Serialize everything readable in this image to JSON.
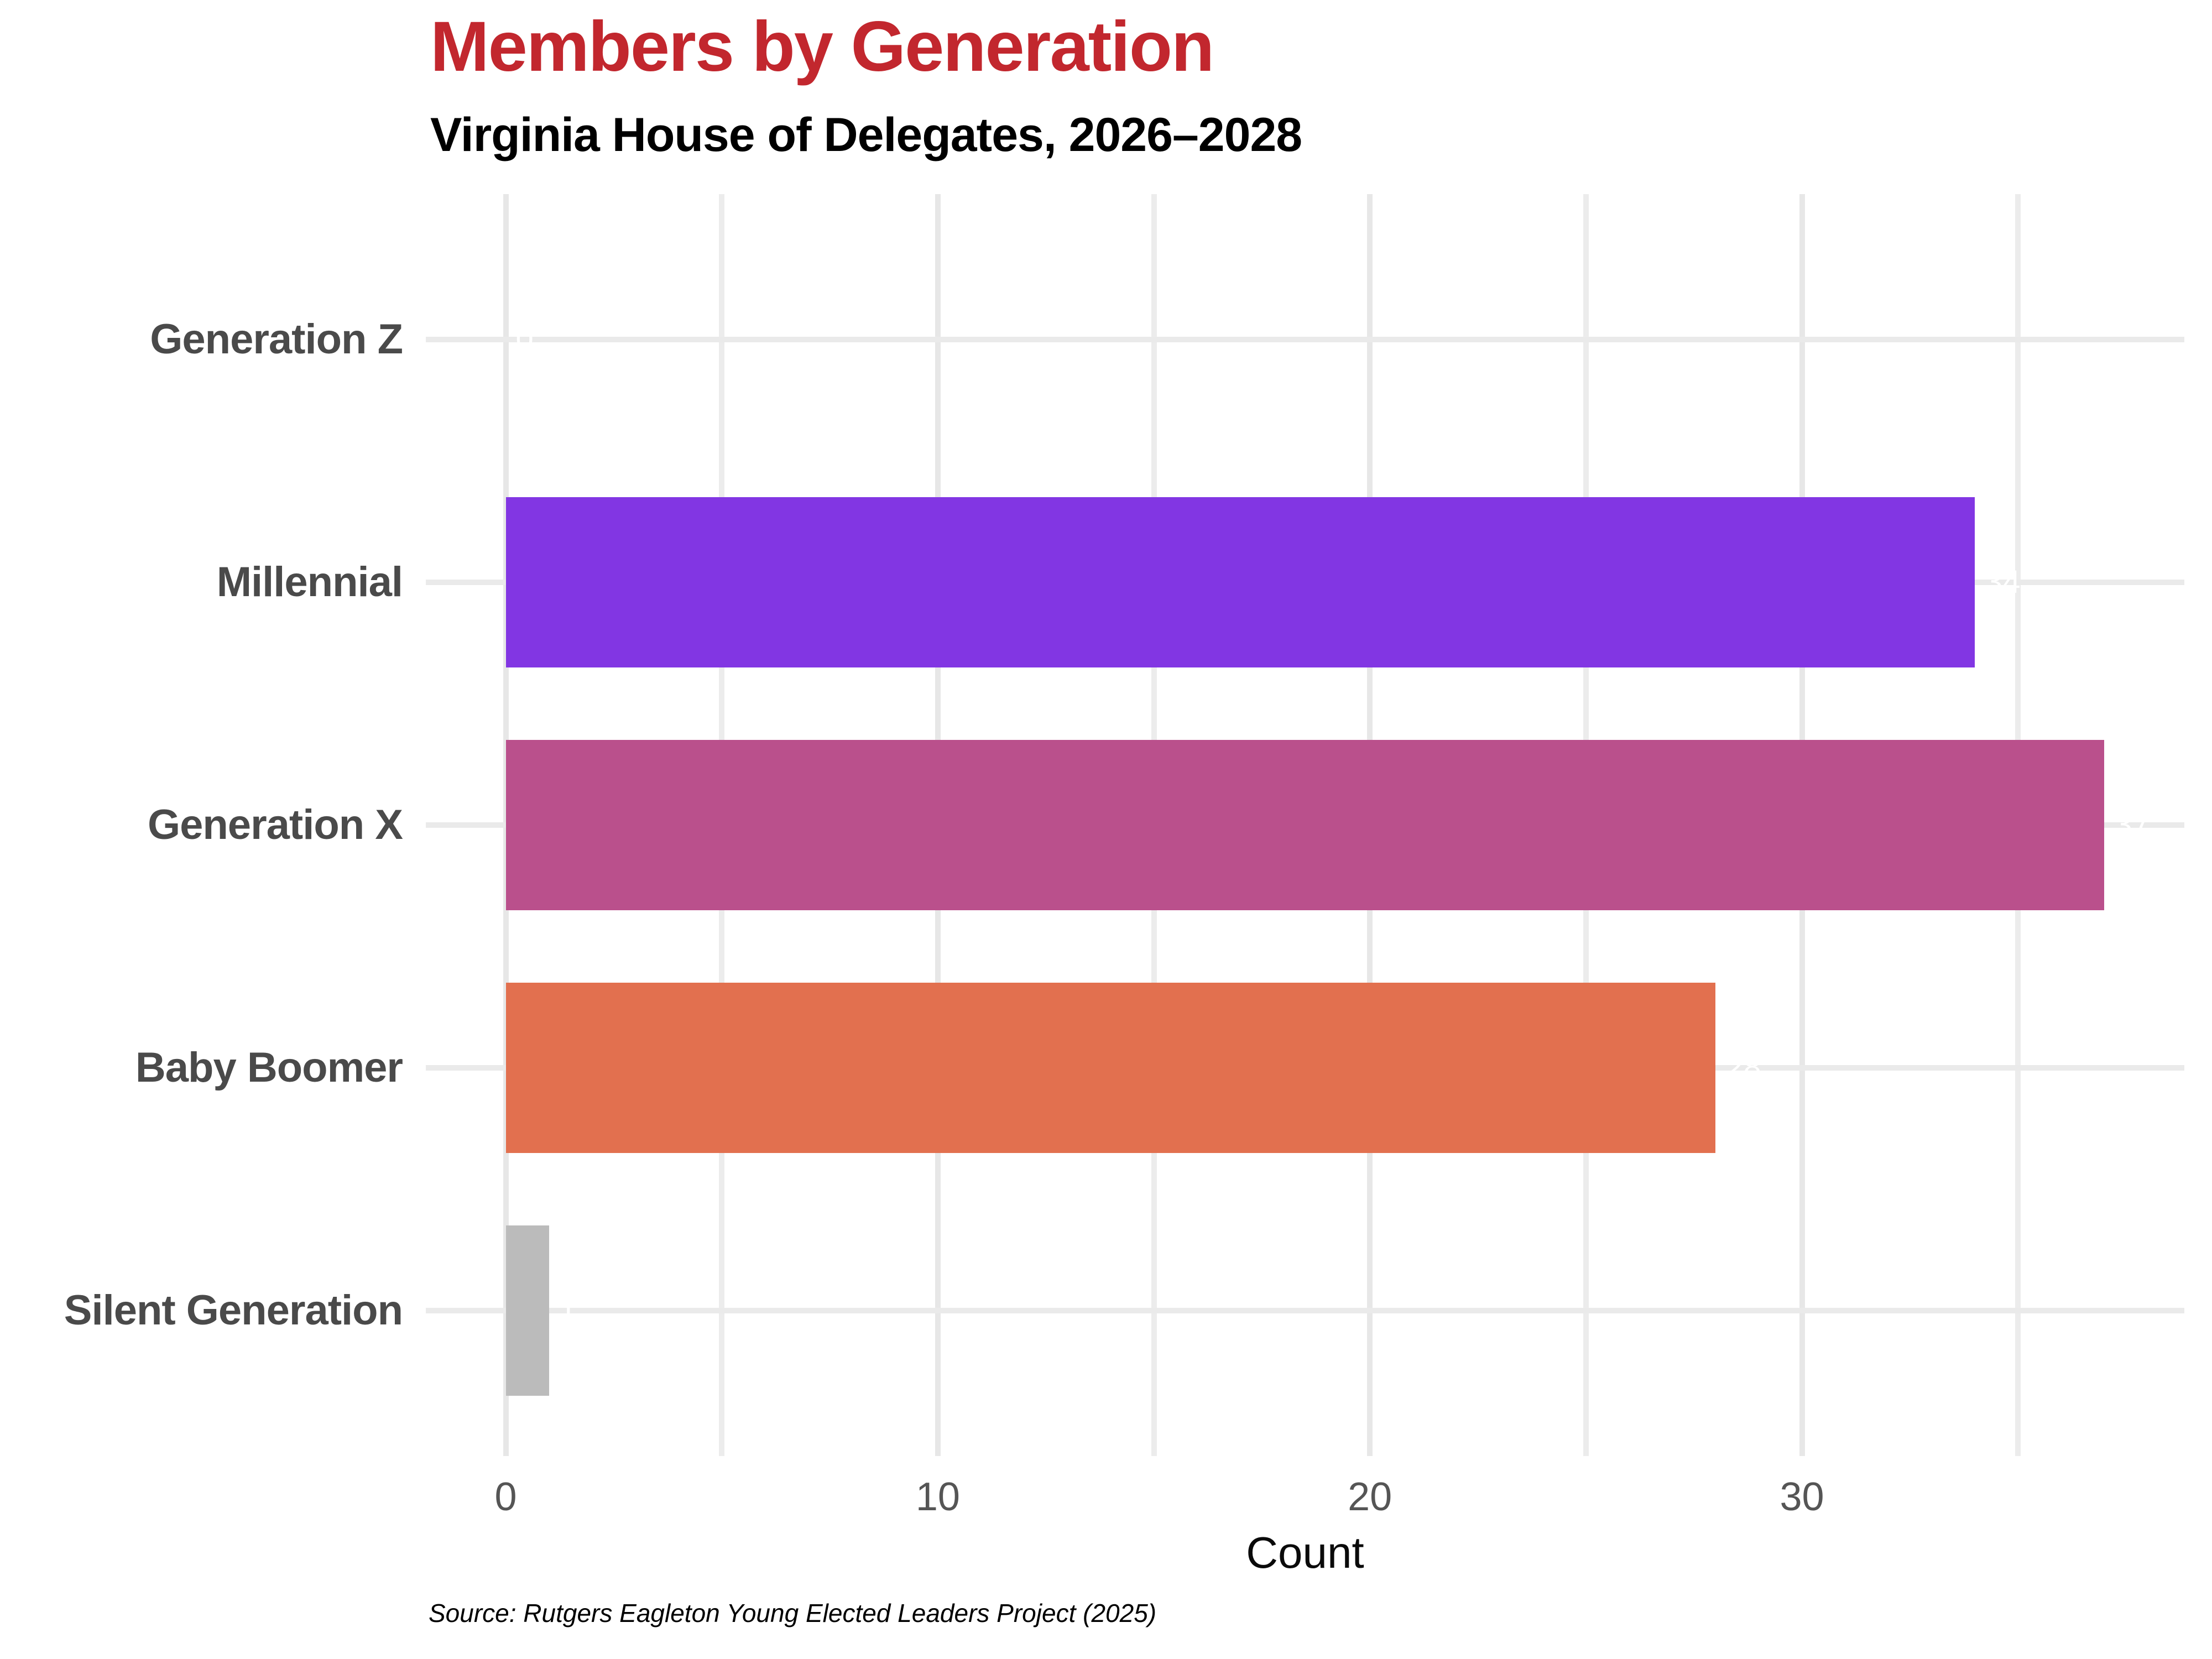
{
  "chart_data": {
    "type": "bar",
    "orientation": "horizontal",
    "title": "Members by Generation",
    "subtitle": "Virginia House of Delegates, 2026–2028",
    "xlabel": "Count",
    "source": "Source: Rutgers Eagleton Young Elected Leaders Project (2025)",
    "categories": [
      "Generation Z",
      "Millennial",
      "Generation X",
      "Baby Boomer",
      "Silent Generation"
    ],
    "values": [
      0,
      34,
      37,
      28,
      1
    ],
    "bar_labels": [
      "0",
      "34",
      "37",
      "28",
      "1"
    ],
    "bar_colors": [
      null,
      "#8236E3",
      "#BA508C",
      "#E2704F",
      "#BBBBBB"
    ],
    "bar_label_color": "#FFFFFF",
    "x_ticks": [
      0,
      10,
      20,
      30
    ],
    "x_minor_ticks": [
      5,
      15,
      25,
      35
    ],
    "xlim": [
      -1.85,
      38.85
    ],
    "grid": "on",
    "legend": "none",
    "title_color": "#C2272E",
    "category_label_color": "#4A4A4A",
    "tick_label_color": "#555555"
  }
}
